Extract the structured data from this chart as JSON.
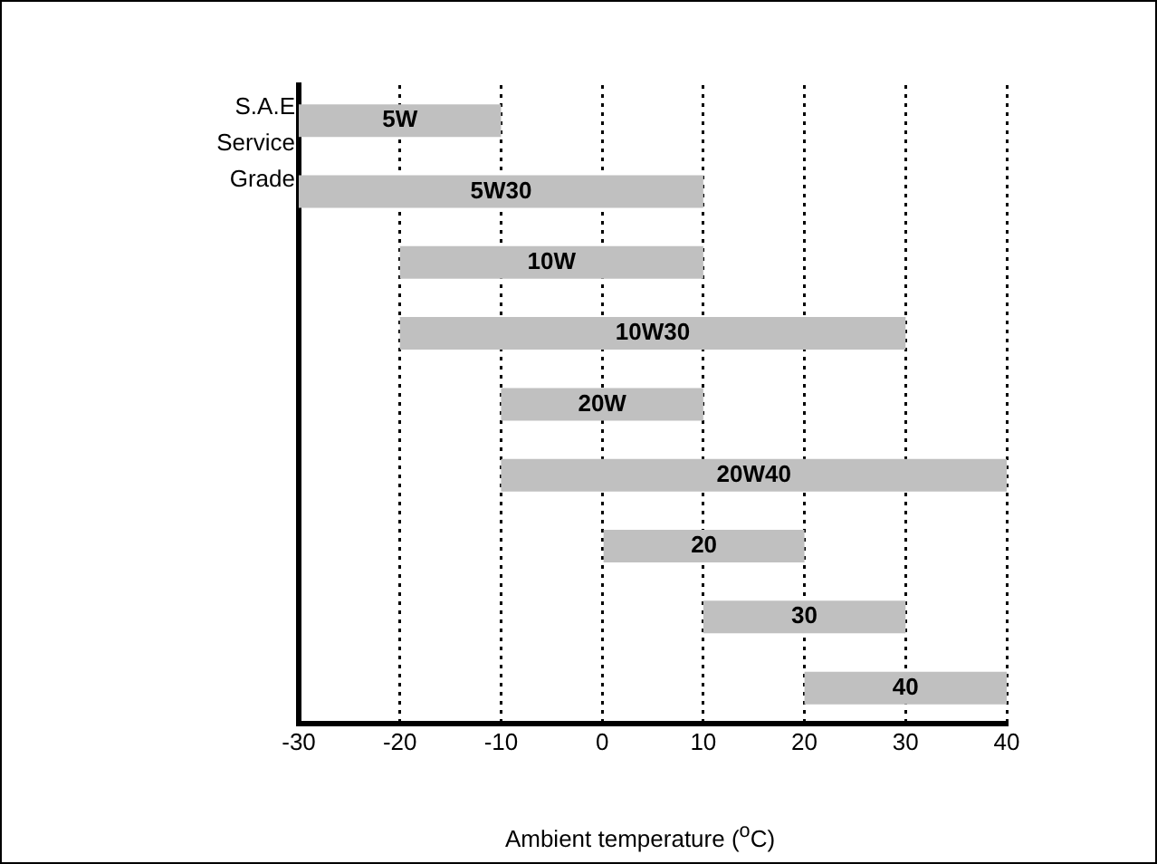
{
  "chart_data": {
    "type": "bar",
    "orientation": "horizontal",
    "categories": [
      "5W",
      "5W30",
      "10W",
      "10W30",
      "20W",
      "20W40",
      "20",
      "30",
      "40"
    ],
    "base": [
      -30,
      -30,
      -20,
      -20,
      -10,
      -10,
      0,
      10,
      20
    ],
    "values": [
      20,
      40,
      30,
      50,
      20,
      50,
      20,
      20,
      20
    ],
    "color": "#c0c0c0",
    "xlabel": "Ambient temperature ($^{o}$C)",
    "ylabel": "S.A.E Service Grade",
    "xlim": [
      -30,
      40
    ],
    "xticks": [
      -30,
      -20,
      -10,
      0,
      10,
      20,
      30,
      40
    ],
    "grid": "x",
    "tick_labels": "x",
    "legend": false
  }
}
